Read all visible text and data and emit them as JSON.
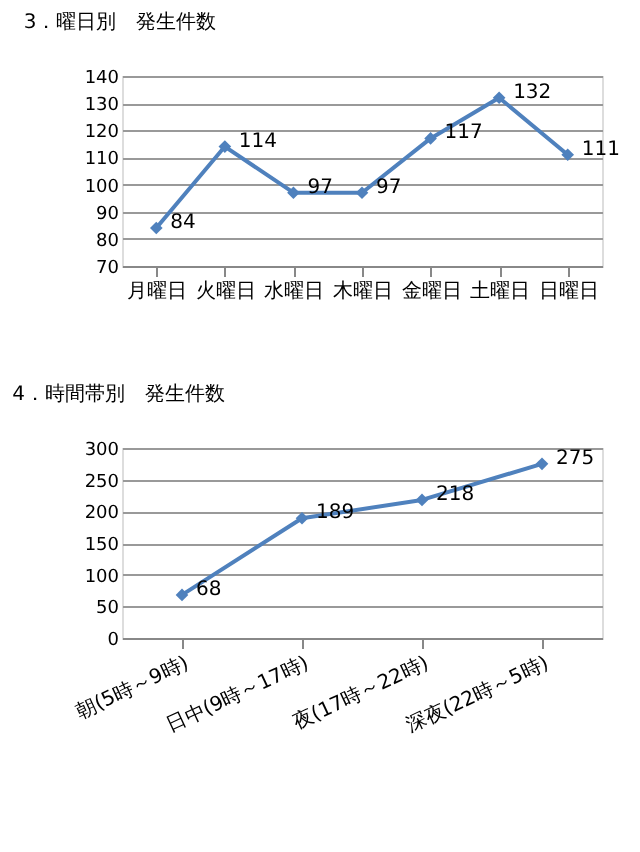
{
  "chart_data": [
    {
      "type": "line",
      "title": "3．曜日別　発生件数",
      "categories": [
        "月曜日",
        "火曜日",
        "水曜日",
        "木曜日",
        "金曜日",
        "土曜日",
        "日曜日"
      ],
      "series": [
        {
          "color": "#4f81bd",
          "values": [
            84,
            114,
            97,
            97,
            117,
            132,
            111
          ]
        }
      ],
      "ylim": [
        70,
        140
      ],
      "yticks": [
        70,
        80,
        90,
        100,
        110,
        120,
        130,
        140
      ],
      "grid": "y",
      "marker": "diamond",
      "data_labels": true
    },
    {
      "type": "line",
      "title": "4．時間帯別　発生件数",
      "categories": [
        "朝(5時～9時)",
        "日中(9時～17時)",
        "夜(17時～22時)",
        "深夜(22時～5時)"
      ],
      "series": [
        {
          "color": "#4f81bd",
          "values": [
            68,
            189,
            218,
            275
          ]
        }
      ],
      "ylim": [
        0,
        300
      ],
      "yticks": [
        0,
        50,
        100,
        150,
        200,
        250,
        300
      ],
      "grid": "y",
      "marker": "diamond",
      "data_labels": true
    }
  ]
}
